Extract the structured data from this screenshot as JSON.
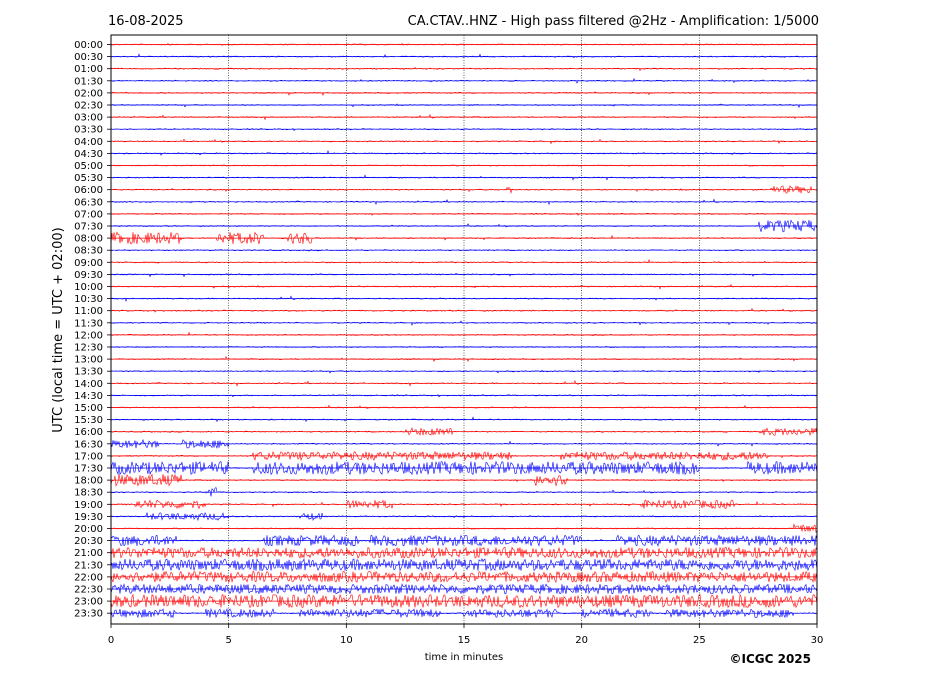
{
  "header": {
    "date": "16-08-2025",
    "title": "CA.CTAV..HNZ - High pass filtered @2Hz - Amplification: 1/5000"
  },
  "footer": {
    "copyright": "©ICGC 2025"
  },
  "colors": {
    "even_trace": "#ff0000",
    "odd_trace": "#0000ff",
    "gridline": "#000000"
  },
  "chart_data": {
    "type": "line",
    "subtype": "helicorder",
    "title": "CA.CTAV..HNZ - High pass filtered @2Hz - Amplification: 1/5000",
    "xlabel": "time in minutes",
    "ylabel": "UTC (local time = UTC + 02:00)",
    "xlim": [
      0,
      30
    ],
    "xticks": [
      0,
      5,
      10,
      15,
      20,
      25,
      30
    ],
    "vertical_grid": [
      5,
      10,
      15,
      20,
      25
    ],
    "grid": "vertical dotted at 5-minute intervals",
    "row_labels": [
      "00:00",
      "00:30",
      "01:00",
      "01:30",
      "02:00",
      "02:30",
      "03:00",
      "03:30",
      "04:00",
      "04:30",
      "05:00",
      "05:30",
      "06:00",
      "06:30",
      "07:00",
      "07:30",
      "08:00",
      "08:30",
      "09:00",
      "09:30",
      "10:00",
      "10:30",
      "11:00",
      "11:30",
      "12:00",
      "12:30",
      "13:00",
      "13:30",
      "14:00",
      "14:30",
      "15:00",
      "15:30",
      "16:00",
      "16:30",
      "17:00",
      "17:30",
      "18:00",
      "18:30",
      "19:00",
      "19:30",
      "20:00",
      "20:30",
      "21:00",
      "21:30",
      "22:00",
      "22:30",
      "23:00",
      "23:30"
    ],
    "trace_color_order": [
      "red",
      "blue"
    ],
    "activity_bursts": [
      {
        "row": "06:00",
        "spans": [
          [
            16.8,
            17.0
          ],
          [
            28,
            29.8
          ]
        ],
        "level": 0.5
      },
      {
        "row": "07:30",
        "spans": [
          [
            27.5,
            30
          ]
        ],
        "level": 0.9
      },
      {
        "row": "08:00",
        "spans": [
          [
            0,
            3
          ],
          [
            4.5,
            6.5
          ],
          [
            7.5,
            8.5
          ]
        ],
        "level": 0.9
      },
      {
        "row": "16:00",
        "spans": [
          [
            12.5,
            14.5
          ],
          [
            27.5,
            30
          ]
        ],
        "level": 0.5
      },
      {
        "row": "16:30",
        "spans": [
          [
            0,
            2
          ],
          [
            3,
            5
          ]
        ],
        "level": 0.6
      },
      {
        "row": "17:00",
        "spans": [
          [
            6,
            17
          ],
          [
            19,
            28
          ]
        ],
        "level": 0.6
      },
      {
        "row": "17:30",
        "spans": [
          [
            0,
            5
          ],
          [
            6,
            18
          ],
          [
            18,
            25
          ],
          [
            27,
            30
          ]
        ],
        "level": 1.0
      },
      {
        "row": "18:00",
        "spans": [
          [
            0,
            3
          ],
          [
            18,
            19.5
          ]
        ],
        "level": 0.9
      },
      {
        "row": "18:30",
        "spans": [
          [
            4,
            4.5
          ]
        ],
        "level": 1.0
      },
      {
        "row": "19:00",
        "spans": [
          [
            1,
            4
          ],
          [
            10,
            12
          ],
          [
            22.5,
            26.5
          ]
        ],
        "level": 0.6
      },
      {
        "row": "19:30",
        "spans": [
          [
            1.5,
            5
          ],
          [
            8,
            9
          ]
        ],
        "level": 0.5
      },
      {
        "row": "20:00",
        "spans": [
          [
            29,
            30
          ]
        ],
        "level": 0.6
      },
      {
        "row": "20:30",
        "spans": [
          [
            0,
            2.8
          ],
          [
            6.5,
            10.5
          ],
          [
            11,
            20
          ],
          [
            21.5,
            30
          ]
        ],
        "level": 0.8
      },
      {
        "row": "21:00",
        "spans": [
          [
            0,
            30
          ]
        ],
        "level": 0.8
      },
      {
        "row": "21:30",
        "spans": [
          [
            0,
            30
          ]
        ],
        "level": 0.9
      },
      {
        "row": "22:00",
        "spans": [
          [
            0,
            30
          ]
        ],
        "level": 0.8
      },
      {
        "row": "22:30",
        "spans": [
          [
            0,
            30
          ]
        ],
        "level": 0.7
      },
      {
        "row": "23:00",
        "spans": [
          [
            0,
            30
          ]
        ],
        "level": 1.0
      },
      {
        "row": "23:30",
        "spans": [
          [
            0,
            2.8
          ],
          [
            4,
            7
          ],
          [
            8,
            14
          ],
          [
            15,
            19
          ],
          [
            20,
            23
          ],
          [
            23.5,
            29
          ]
        ],
        "level": 0.6
      }
    ]
  }
}
